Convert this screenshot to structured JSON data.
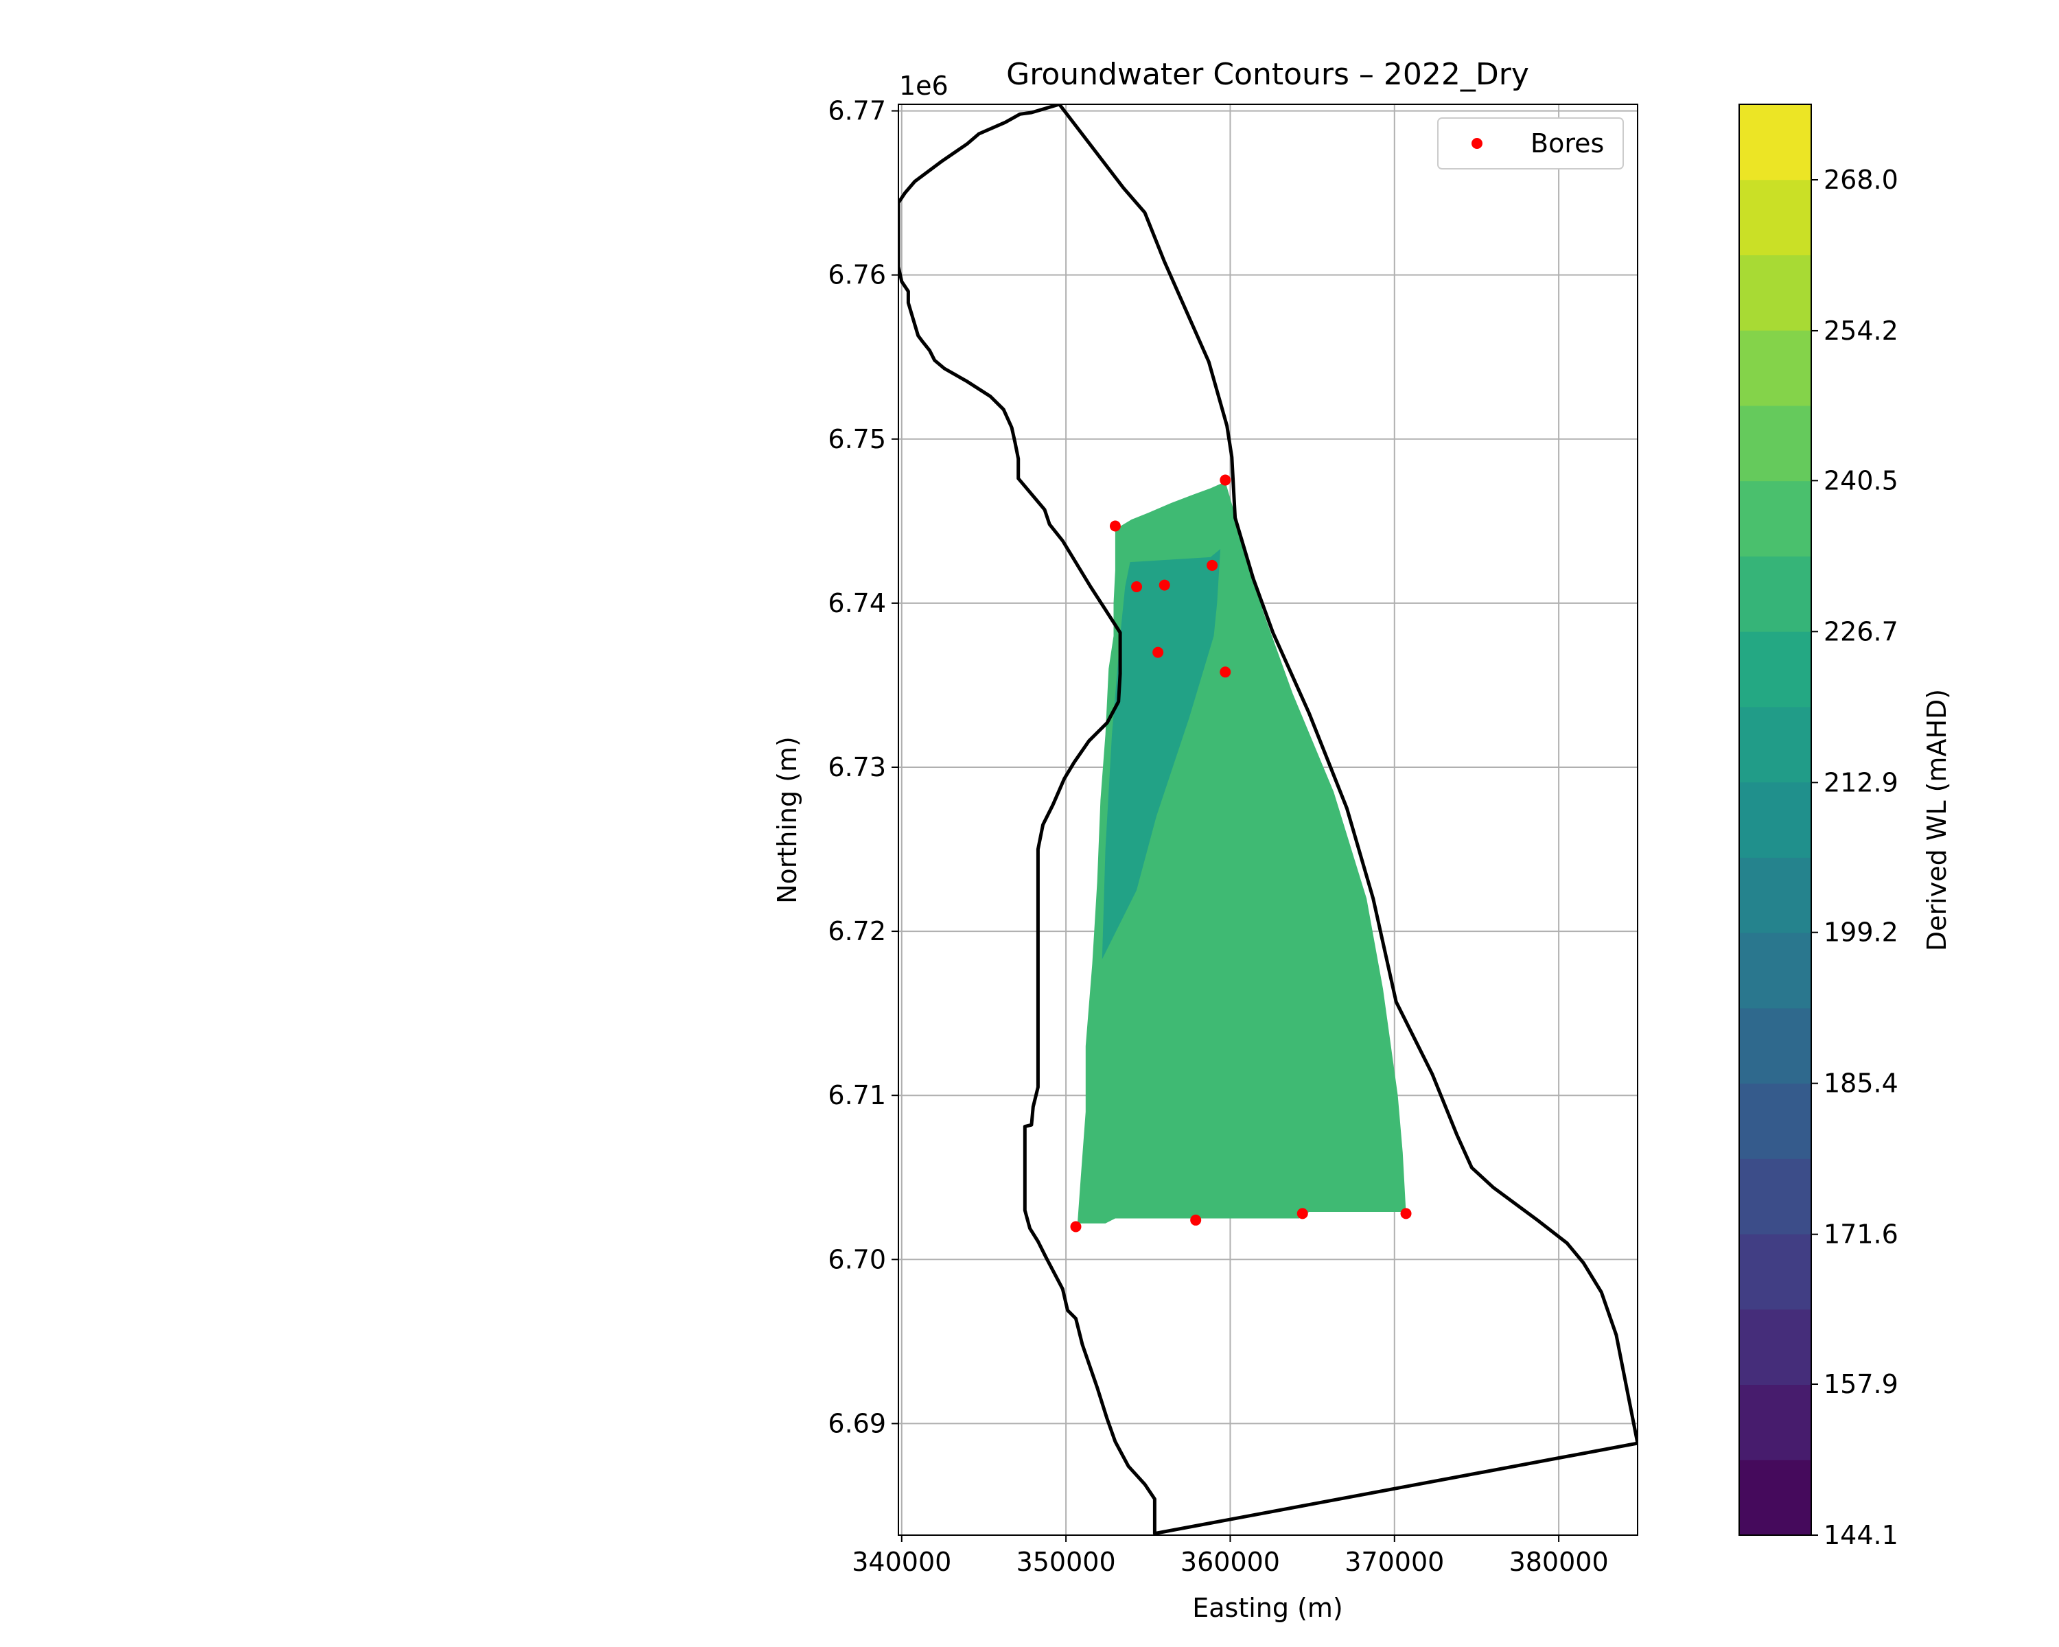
{
  "chart_data": {
    "type": "contour_map",
    "title": "Groundwater Contours – 2022_Dry",
    "xlabel": "Easting (m)",
    "ylabel": "Northing (m)",
    "y_offset_label": "1e6",
    "xlim": [
      339800,
      384800
    ],
    "ylim": [
      6683200,
      6770400
    ],
    "x_ticks": [
      340000,
      350000,
      360000,
      370000,
      380000
    ],
    "x_tick_labels": [
      "340000",
      "350000",
      "360000",
      "370000",
      "380000"
    ],
    "y_ticks": [
      6690000,
      6700000,
      6710000,
      6720000,
      6730000,
      6740000,
      6750000,
      6760000,
      6770000
    ],
    "y_tick_labels": [
      "6.69",
      "6.70",
      "6.71",
      "6.72",
      "6.73",
      "6.74",
      "6.75",
      "6.76",
      "6.77"
    ],
    "grid": true,
    "legend": {
      "position": "top-right",
      "entries": [
        {
          "label": "Bores",
          "color": "#ff0000",
          "marker": "dot"
        }
      ]
    },
    "colorbar": {
      "label": "Derived WL (mAHD)",
      "colormap": "viridis",
      "min": 144.1,
      "max": 274.9,
      "levels": 19,
      "tick_values": [
        144.1,
        157.9,
        171.6,
        185.4,
        199.2,
        212.9,
        226.7,
        240.5,
        254.2,
        268.0
      ],
      "tick_labels": [
        "144.1",
        "157.9",
        "171.6",
        "185.4",
        "199.2",
        "212.9",
        "226.7",
        "240.5",
        "254.2",
        "268.0"
      ]
    },
    "bores": [
      {
        "x": 359700,
        "y": 6747500
      },
      {
        "x": 353000,
        "y": 6744700
      },
      {
        "x": 358900,
        "y": 6742300
      },
      {
        "x": 354300,
        "y": 6741000
      },
      {
        "x": 356000,
        "y": 6741100
      },
      {
        "x": 355600,
        "y": 6737000
      },
      {
        "x": 359700,
        "y": 6735800
      },
      {
        "x": 350600,
        "y": 6702000
      },
      {
        "x": 357900,
        "y": 6702400
      },
      {
        "x": 364400,
        "y": 6702800
      },
      {
        "x": 370700,
        "y": 6702800
      }
    ],
    "boundary": [
      [
        349600,
        6770400
      ],
      [
        353500,
        6765300
      ],
      [
        354800,
        6763800
      ],
      [
        356000,
        6760800
      ],
      [
        358700,
        6754700
      ],
      [
        359800,
        6750800
      ],
      [
        360100,
        6748900
      ],
      [
        360300,
        6745200
      ],
      [
        361400,
        6741500
      ],
      [
        362600,
        6738200
      ],
      [
        364800,
        6733300
      ],
      [
        367100,
        6727500
      ],
      [
        368700,
        6722000
      ],
      [
        370100,
        6715700
      ],
      [
        372300,
        6711300
      ],
      [
        373800,
        6707600
      ],
      [
        374700,
        6705600
      ],
      [
        376000,
        6704400
      ],
      [
        378700,
        6702400
      ],
      [
        380500,
        6701000
      ],
      [
        381500,
        6699800
      ],
      [
        382600,
        6698000
      ],
      [
        383500,
        6695400
      ],
      [
        384800,
        6688800
      ],
      [
        355400,
        6683300
      ],
      [
        355400,
        6685400
      ],
      [
        354800,
        6686300
      ],
      [
        353800,
        6687400
      ],
      [
        353000,
        6688900
      ],
      [
        352500,
        6690300
      ],
      [
        351900,
        6692200
      ],
      [
        351000,
        6694800
      ],
      [
        350600,
        6696400
      ],
      [
        350100,
        6696900
      ],
      [
        349800,
        6698200
      ],
      [
        348800,
        6700100
      ],
      [
        348300,
        6701100
      ],
      [
        347800,
        6701900
      ],
      [
        347500,
        6703000
      ],
      [
        347500,
        6708100
      ],
      [
        347900,
        6708200
      ],
      [
        348000,
        6709300
      ],
      [
        348300,
        6710500
      ],
      [
        348300,
        6725000
      ],
      [
        348600,
        6726500
      ],
      [
        349200,
        6727700
      ],
      [
        349900,
        6729300
      ],
      [
        350500,
        6730300
      ],
      [
        351400,
        6731600
      ],
      [
        352500,
        6732700
      ],
      [
        353200,
        6734000
      ],
      [
        353300,
        6735700
      ],
      [
        353300,
        6738200
      ],
      [
        352400,
        6739600
      ],
      [
        351500,
        6741000
      ],
      [
        349800,
        6743800
      ],
      [
        349000,
        6744800
      ],
      [
        348700,
        6745700
      ],
      [
        347100,
        6747600
      ],
      [
        347100,
        6748800
      ],
      [
        346900,
        6749800
      ],
      [
        346700,
        6750700
      ],
      [
        346200,
        6751800
      ],
      [
        345400,
        6752600
      ],
      [
        344000,
        6753500
      ],
      [
        342600,
        6754300
      ],
      [
        342000,
        6754800
      ],
      [
        341700,
        6755400
      ],
      [
        341300,
        6755900
      ],
      [
        341000,
        6756300
      ],
      [
        340400,
        6758300
      ],
      [
        340400,
        6759000
      ],
      [
        340000,
        6759600
      ],
      [
        339800,
        6760500
      ],
      [
        339800,
        6764400
      ],
      [
        340200,
        6765000
      ],
      [
        340800,
        6765700
      ],
      [
        342400,
        6766900
      ],
      [
        344000,
        6768000
      ],
      [
        344700,
        6768600
      ],
      [
        346300,
        6769300
      ],
      [
        347200,
        6769800
      ],
      [
        347900,
        6769900
      ],
      [
        349600,
        6770400
      ]
    ],
    "contour_regions": [
      {
        "value": 233.6,
        "polygon": [
          [
            353000,
            6744500
          ],
          [
            354000,
            6745100
          ],
          [
            355000,
            6745500
          ],
          [
            356400,
            6746100
          ],
          [
            357700,
            6746600
          ],
          [
            358800,
            6747000
          ],
          [
            359700,
            6747400
          ],
          [
            360700,
            6744000
          ],
          [
            362000,
            6739500
          ],
          [
            363800,
            6734500
          ],
          [
            366300,
            6728500
          ],
          [
            368300,
            6722000
          ],
          [
            369300,
            6716500
          ],
          [
            370200,
            6710000
          ],
          [
            370500,
            6706500
          ],
          [
            370700,
            6702900
          ],
          [
            364800,
            6702900
          ],
          [
            364200,
            6702500
          ],
          [
            353000,
            6702500
          ],
          [
            352400,
            6702200
          ],
          [
            350700,
            6702200
          ],
          [
            350900,
            6705000
          ],
          [
            351200,
            6709000
          ],
          [
            351200,
            6713000
          ],
          [
            351600,
            6718000
          ],
          [
            351900,
            6723000
          ],
          [
            352100,
            6728000
          ],
          [
            352400,
            6732000
          ],
          [
            352600,
            6736000
          ],
          [
            352900,
            6738000
          ],
          [
            352900,
            6740000
          ],
          [
            353000,
            6742000
          ]
        ]
      },
      {
        "value": 219.8,
        "polygon": [
          [
            353900,
            6742500
          ],
          [
            358800,
            6742800
          ],
          [
            359400,
            6743300
          ],
          [
            359200,
            6740000
          ],
          [
            359000,
            6738000
          ],
          [
            357500,
            6733000
          ],
          [
            355500,
            6727000
          ],
          [
            354300,
            6722500
          ],
          [
            352200,
            6718300
          ],
          [
            352400,
            6725000
          ],
          [
            352800,
            6732000
          ],
          [
            353300,
            6738000
          ],
          [
            353600,
            6741000
          ]
        ]
      }
    ]
  }
}
